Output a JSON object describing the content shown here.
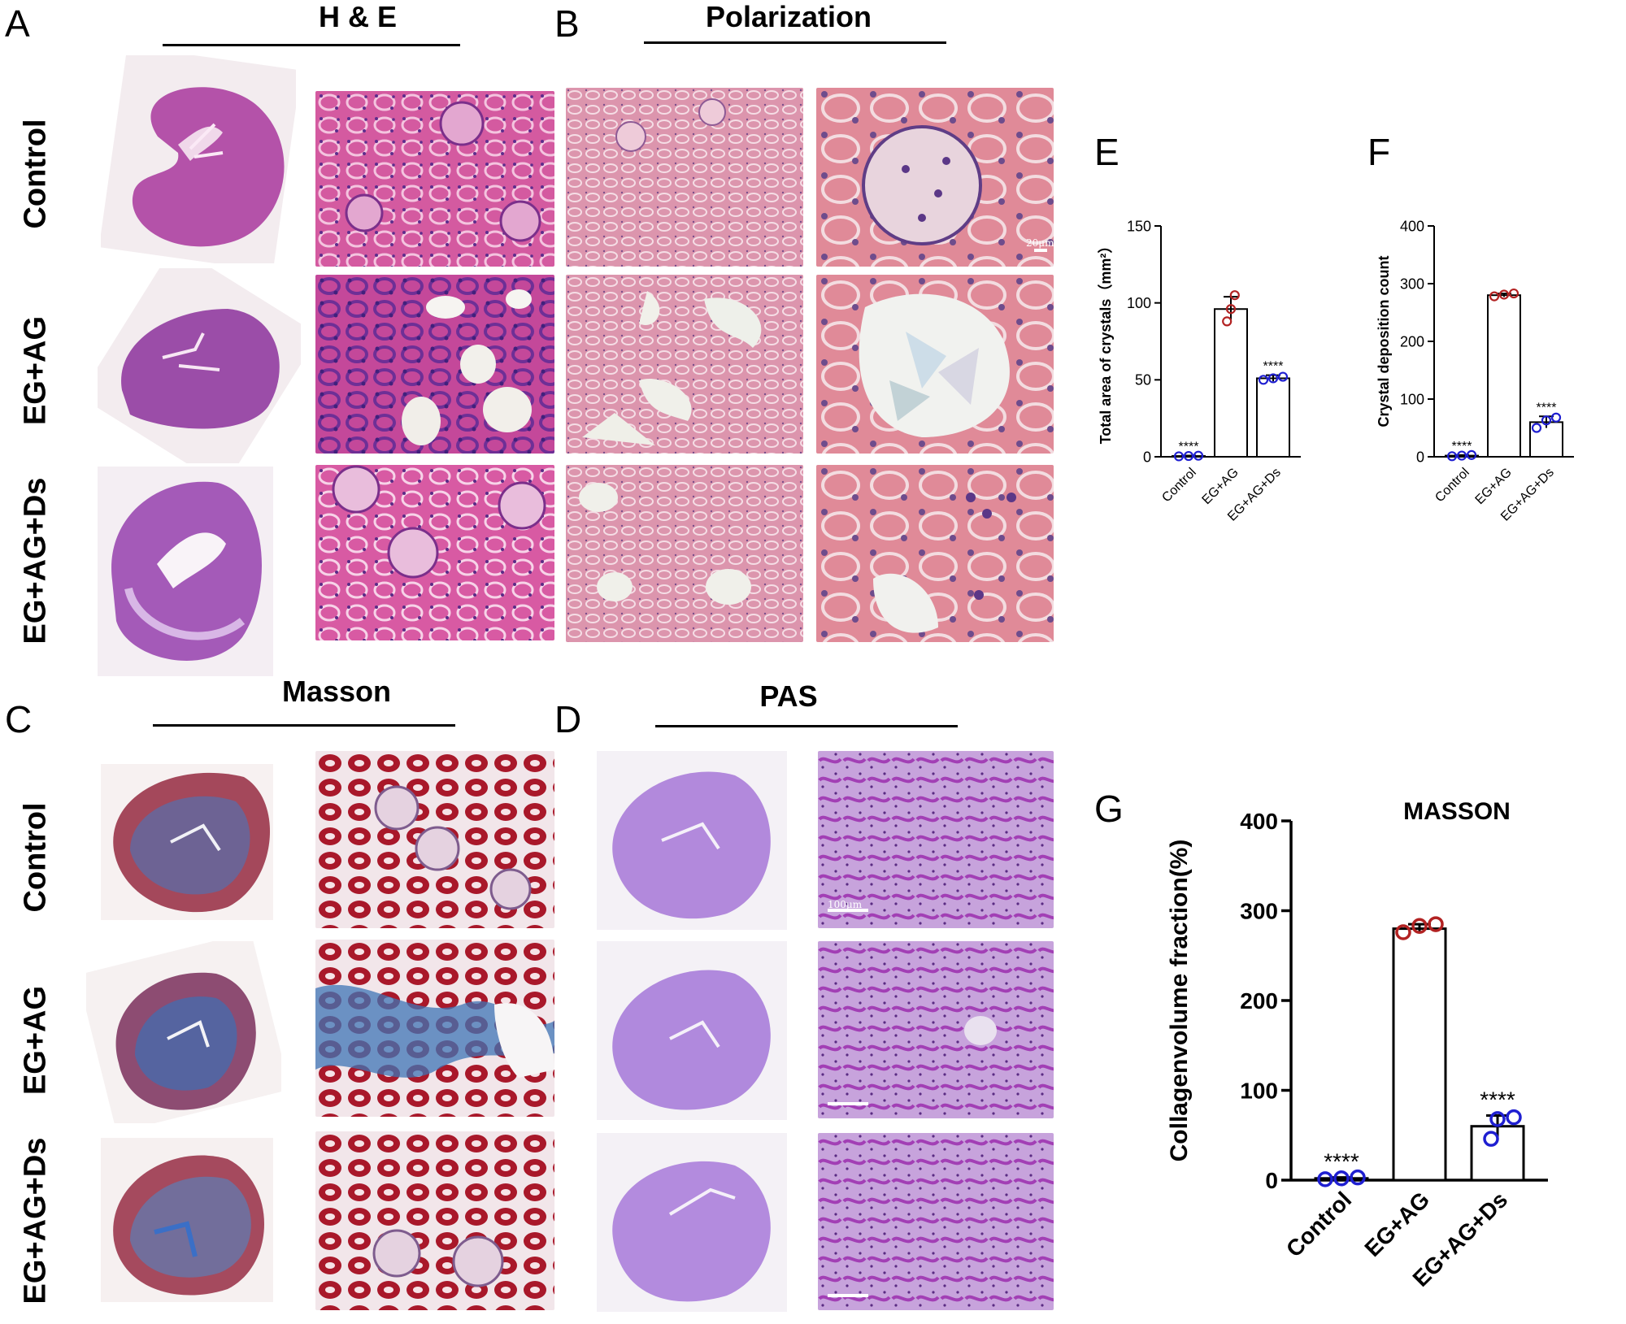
{
  "panels": {
    "A": {
      "letter": "A",
      "title": "H & E"
    },
    "B": {
      "letter": "B",
      "title": "Polarization"
    },
    "C": {
      "letter": "C",
      "title": "Masson"
    },
    "D": {
      "letter": "D",
      "title": "PAS"
    },
    "E": {
      "letter": "E"
    },
    "F": {
      "letter": "F"
    },
    "G": {
      "letter": "G"
    }
  },
  "row_labels": [
    "Control",
    "EG+AG",
    "EG+AG+Ds"
  ],
  "scale_labels": {
    "b_top": "20μm",
    "d_top": "100μm"
  },
  "colors": {
    "he_pink": "#d25a9e",
    "he_purple": "#8b3f99",
    "pol_pink": "#d88aa6",
    "masson_red": "#a81b2a",
    "masson_blue": "#3d6fa8",
    "pas_purple": "#b27bd6",
    "red_points": "#b22222",
    "blue_points": "#1f1fd1"
  },
  "chart_data": [
    {
      "id": "E",
      "type": "bar",
      "categories": [
        "Control",
        "EG+AG",
        "EG+AG+Ds"
      ],
      "values": [
        0.5,
        96,
        51
      ],
      "errors": [
        0.3,
        8,
        2
      ],
      "points": [
        [
          0.3,
          0.5,
          0.7
        ],
        [
          88,
          96,
          105
        ],
        [
          50,
          51,
          52
        ]
      ],
      "point_colors": [
        "blue",
        "red",
        "blue"
      ],
      "annotations": [
        "****",
        "",
        "****"
      ],
      "ylabel": "Total area of crystals（mm²）",
      "yticks": [
        0,
        50,
        100,
        150
      ],
      "ylim": [
        0,
        150
      ]
    },
    {
      "id": "F",
      "type": "bar",
      "categories": [
        "Control",
        "EG+AG",
        "EG+AG+Ds"
      ],
      "values": [
        2,
        280,
        60
      ],
      "errors": [
        1,
        3,
        10
      ],
      "points": [
        [
          1,
          2,
          3
        ],
        [
          278,
          281,
          283
        ],
        [
          50,
          63,
          68
        ]
      ],
      "point_colors": [
        "blue",
        "red",
        "blue"
      ],
      "annotations": [
        "****",
        "",
        "****"
      ],
      "ylabel": "Crystal deposition count",
      "yticks": [
        0,
        100,
        200,
        300,
        400
      ],
      "ylim": [
        0,
        400
      ]
    },
    {
      "id": "G",
      "type": "bar",
      "title": "MASSON",
      "categories": [
        "Control",
        "EG+AG",
        "EG+AG+Ds"
      ],
      "values": [
        2,
        280,
        60
      ],
      "errors": [
        1,
        5,
        12
      ],
      "points": [
        [
          1,
          2,
          3
        ],
        [
          276,
          283,
          285
        ],
        [
          46,
          68,
          70
        ]
      ],
      "point_colors": [
        "blue",
        "red",
        "blue"
      ],
      "annotations": [
        "****",
        "",
        "****"
      ],
      "ylabel": "Collagenvolume fraction(%)",
      "yticks": [
        0,
        100,
        200,
        300,
        400
      ],
      "ylim": [
        0,
        400
      ]
    }
  ]
}
